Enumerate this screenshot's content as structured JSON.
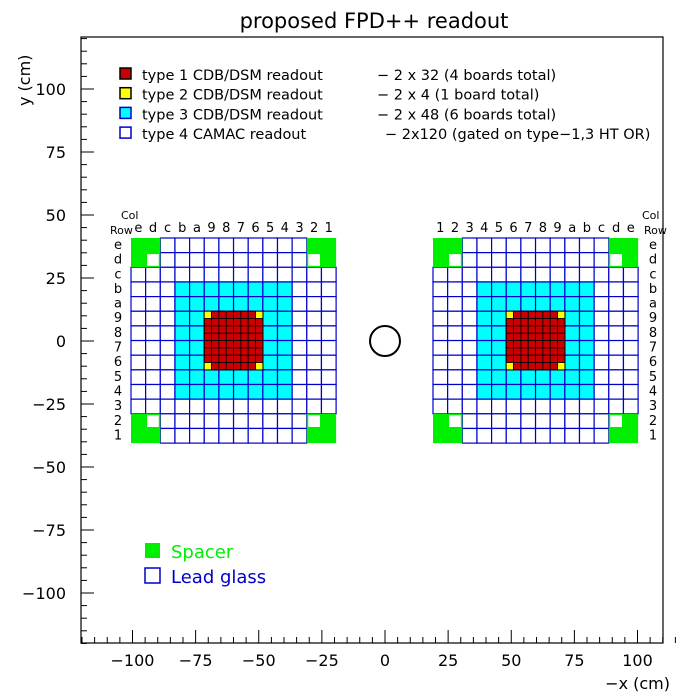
{
  "title": "proposed FPD++ readout",
  "axes": {
    "xlabel": "−x (cm)",
    "ylabel": "y (cm)",
    "x_ticks": [
      "−100",
      "−75",
      "−50",
      "−25",
      "0",
      "25",
      "50",
      "75",
      "100"
    ],
    "y_ticks": [
      "−100",
      "−75",
      "−50",
      "−25",
      "0",
      "25",
      "50",
      "75",
      "100"
    ],
    "xlim": [
      -120,
      120
    ],
    "ylim": [
      -120,
      120
    ]
  },
  "legend": [
    {
      "label": "type 1 CDB/DSM readout",
      "desc": "− 2 x 32 (4 boards total)",
      "color": "#cc0000",
      "stroke": "#000000"
    },
    {
      "label": "type 2 CDB/DSM readout",
      "desc": "− 2 x 4  (1 board total)",
      "color": "#ffff00",
      "stroke": "#000000"
    },
    {
      "label": "type 3 CDB/DSM readout",
      "desc": "− 2 x 48 (6 boards total)",
      "color": "#00ffff",
      "stroke": "#0000cc"
    },
    {
      "label": "type 4 CAMAC readout",
      "desc": "− 2x120 (gated on type−1,3 HT OR)",
      "color": "#ffffff",
      "stroke": "#0000cc"
    }
  ],
  "legend2": [
    {
      "label": "Spacer",
      "color": "#00ee00"
    },
    {
      "label": "Lead glass",
      "color": "#0000cc"
    }
  ],
  "grid_labels": {
    "col_header": "Col",
    "row_header": "Row",
    "left_cols": [
      "e",
      "d",
      "c",
      "b",
      "a",
      "9",
      "8",
      "7",
      "6",
      "5",
      "4",
      "3",
      "2",
      "1"
    ],
    "right_cols": [
      "1",
      "2",
      "3",
      "4",
      "5",
      "6",
      "7",
      "8",
      "9",
      "a",
      "b",
      "c",
      "d",
      "e"
    ],
    "rows": [
      "e",
      "d",
      "c",
      "b",
      "a",
      "9",
      "8",
      "7",
      "6",
      "5",
      "4",
      "3",
      "2",
      "1"
    ]
  },
  "colors": {
    "type1": "#cc0000",
    "type2": "#ffff00",
    "type3": "#00ffff",
    "lead_glass": "#0000cc",
    "spacer": "#00ee00"
  }
}
